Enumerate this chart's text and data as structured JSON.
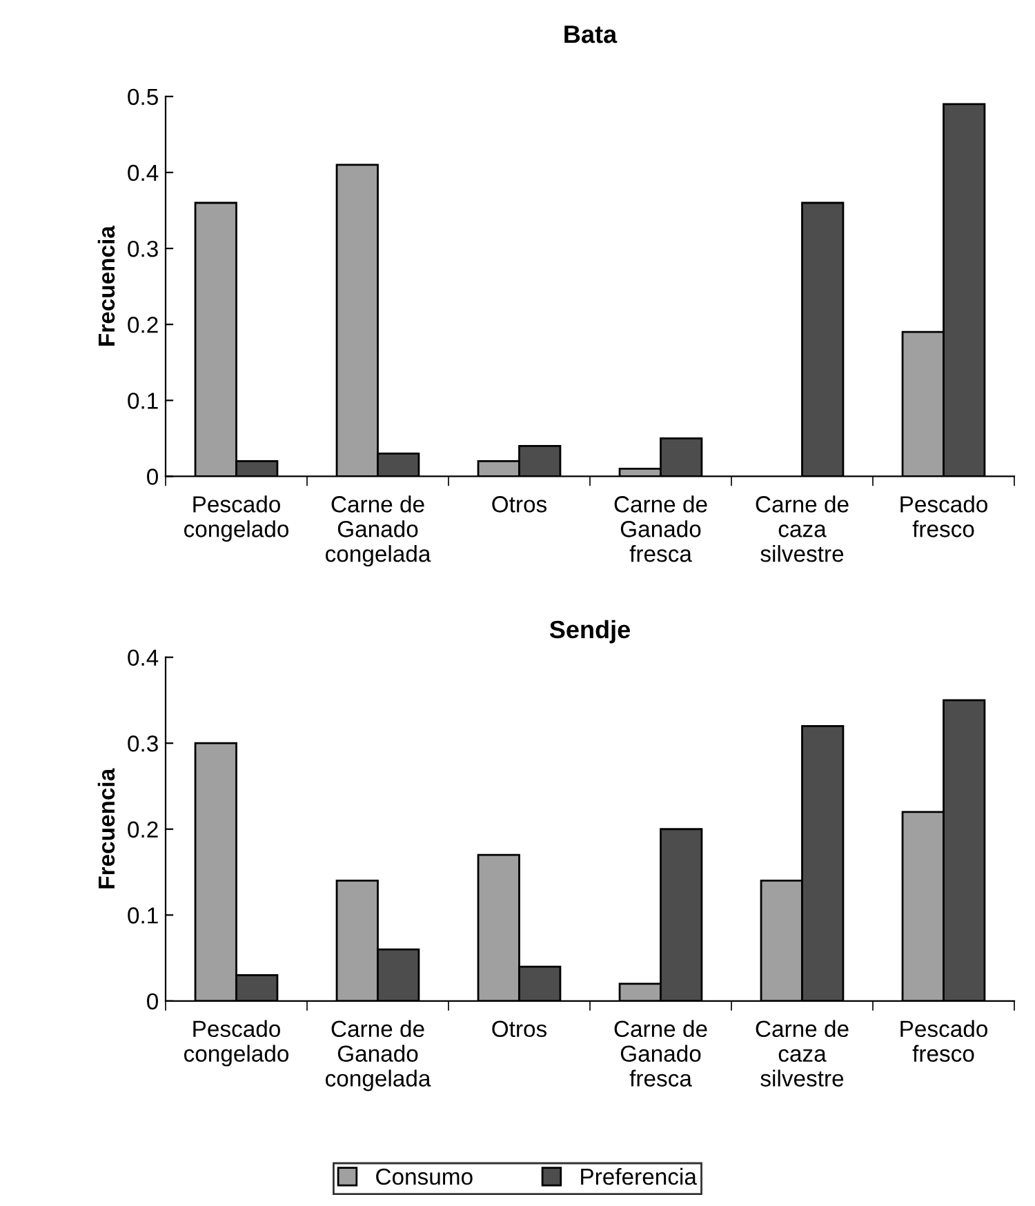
{
  "chart_data": [
    {
      "type": "bar",
      "title": "Bata",
      "ylabel": "Frecuencia",
      "categories": [
        "Pescado\ncongelado",
        "Carne de\nGanado\ncongelada",
        "Otros",
        "Carne de\nGanado\nfresca",
        "Carne de\ncaza\nsilvestre",
        "Pescado\nfresco"
      ],
      "series": [
        {
          "color": "#a0a0a0",
          "values": [
            0.36,
            0.41,
            0.02,
            0.01,
            null,
            0.19
          ]
        },
        {
          "color": "#4d4d4d",
          "values": [
            0.02,
            0.03,
            0.04,
            0.05,
            0.36,
            0.49
          ]
        }
      ],
      "ylim": [
        0,
        0.5
      ],
      "yticks": [
        {
          "value": 0,
          "label": "0"
        },
        0.1,
        0.2,
        0.3,
        0.4,
        0.5
      ],
      "grid": false,
      "legend": false
    },
    {
      "type": "bar",
      "title": "Sendje",
      "ylabel": "Frecuencia",
      "categories": [
        "Pescado\ncongelado",
        "Carne de\nGanado\ncongelada",
        "Otros",
        "Carne de\nGanado\nfresca",
        "Carne de\ncaza\nsilvestre",
        "Pescado\nfresco"
      ],
      "series": [
        {
          "name": "Consumo",
          "color": "#a0a0a0",
          "values": [
            0.3,
            0.14,
            0.17,
            0.02,
            0.14,
            0.22
          ]
        },
        {
          "name": "Preferencia",
          "color": "#4d4d4d",
          "values": [
            0.03,
            0.06,
            0.04,
            0.2,
            0.32,
            0.35
          ]
        }
      ],
      "ylim": [
        0,
        0.4
      ],
      "yticks": [
        {
          "value": 0,
          "label": "0"
        },
        0.1,
        0.2,
        0.3,
        0.4
      ],
      "grid": false,
      "legend": "bottom"
    }
  ]
}
